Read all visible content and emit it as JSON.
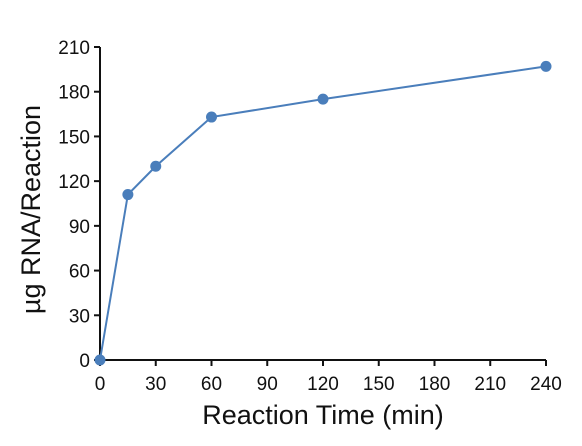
{
  "chart_data": {
    "type": "line",
    "title": "",
    "xlabel": "Reaction Time (min)",
    "ylabel": "µg RNA/Reaction",
    "xlim": [
      0,
      240
    ],
    "ylim": [
      0,
      210
    ],
    "x_ticks": [
      0,
      30,
      60,
      90,
      120,
      150,
      180,
      210,
      240
    ],
    "y_ticks": [
      0,
      30,
      60,
      90,
      120,
      150,
      180,
      210
    ],
    "grid": false,
    "legend": "none",
    "series": [
      {
        "color": "#4a7ebb",
        "x": [
          0,
          15,
          30,
          60,
          120,
          240
        ],
        "y": [
          0,
          111,
          130,
          163,
          175,
          197
        ]
      }
    ]
  }
}
